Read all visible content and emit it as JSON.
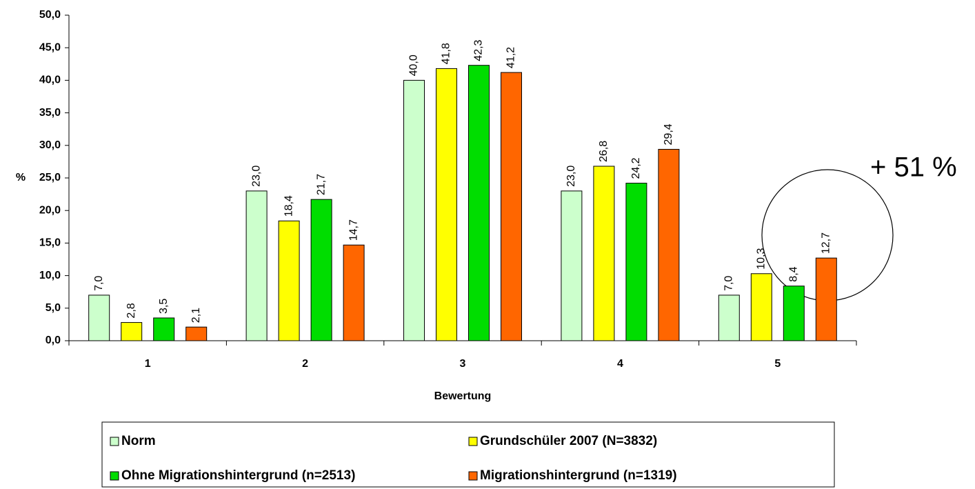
{
  "chart_data": {
    "type": "bar",
    "categories": [
      "1",
      "2",
      "3",
      "4",
      "5"
    ],
    "x_label": "Bewertung",
    "y_label": "%",
    "annotation": "+ 51 %",
    "legend": "bottom",
    "ylim": [
      0,
      50
    ],
    "yticks": [
      {
        "value": 0,
        "label": "0,0"
      },
      {
        "value": 5,
        "label": "5,0"
      },
      {
        "value": 10,
        "label": "10,0"
      },
      {
        "value": 15,
        "label": "15,0"
      },
      {
        "value": 20,
        "label": "20,0"
      },
      {
        "value": 25,
        "label": "25,0"
      },
      {
        "value": 30,
        "label": "30,0"
      },
      {
        "value": 35,
        "label": "35,0"
      },
      {
        "value": 40,
        "label": "40,0"
      },
      {
        "value": 45,
        "label": "45,0"
      },
      {
        "value": 50,
        "label": "50,0"
      }
    ],
    "series": [
      {
        "name": "Norm",
        "color": "#ccffcc",
        "values": [
          7.0,
          23.0,
          40.0,
          23.0,
          7.0
        ],
        "value_labels": [
          "7,0",
          "23,0",
          "40,0",
          "23,0",
          "7,0"
        ]
      },
      {
        "name": "Grundschüler 2007 (N=3832)",
        "color": "#ffff00",
        "values": [
          2.8,
          18.4,
          41.8,
          26.8,
          10.3
        ],
        "value_labels": [
          "2,8",
          "18,4",
          "41,8",
          "26,8",
          "10,3"
        ]
      },
      {
        "name": "Ohne Migrationshintergrund (n=2513)",
        "color": "#00dd00",
        "values": [
          3.5,
          21.7,
          42.3,
          24.2,
          8.4
        ],
        "value_labels": [
          "3,5",
          "21,7",
          "42,3",
          "24,2",
          "8,4"
        ]
      },
      {
        "name": "Migrationshintergrund (n=1319)",
        "color": "#ff6600",
        "values": [
          2.1,
          14.7,
          41.2,
          29.4,
          12.7
        ],
        "value_labels": [
          "2,1",
          "14,7",
          "41,2",
          "29,4",
          "12,7"
        ]
      }
    ]
  }
}
